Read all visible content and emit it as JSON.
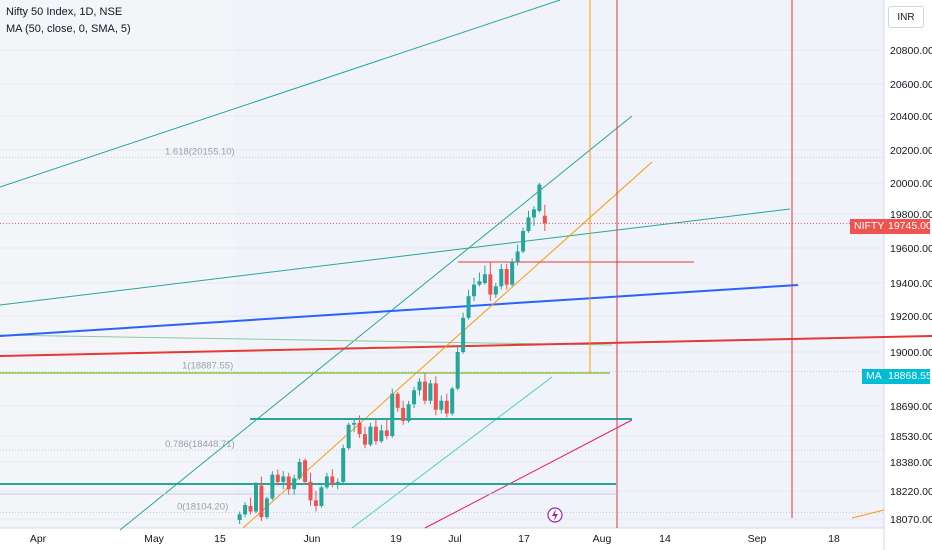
{
  "legend": {
    "symbol_line": "Nifty 50 Index, 1D, NSE",
    "ma_line": "MA (50, close, 0, SMA, 5)"
  },
  "currency": "INR",
  "price_tags": {
    "nifty_label": "NIFTY",
    "nifty_value": "19745.00",
    "ma_label": "MA",
    "ma_value": "18868.55"
  },
  "colors": {
    "up": "#26a69a",
    "down": "#ef5350",
    "ma_tag": "#00bcd4",
    "fib": "#8bc34a",
    "trend_green": "#26a69a",
    "blue": "#2962ff",
    "red": "#e53935",
    "orange": "#ff9800",
    "pink": "#e91e63"
  },
  "chart_data": {
    "type": "candlestick",
    "symbol": "Nifty 50 Index",
    "interval": "1D",
    "exchange": "NSE",
    "x_tick_labels": [
      "Apr",
      "May",
      "15",
      "Jun",
      "19",
      "Jul",
      "17",
      "Aug",
      "14",
      "Sep",
      "18"
    ],
    "y_tick_labels": [
      "20800.00",
      "20600.00",
      "20400.00",
      "20200.00",
      "20000.00",
      "19800.00",
      "19600.00",
      "19400.00",
      "19200.00",
      "19000.00",
      "18690.00",
      "18530.00",
      "18380.00",
      "18220.00",
      "18070.00"
    ],
    "ylim": [
      18040,
      21100
    ],
    "last_close": 19745.0,
    "ma_last": 18868.55,
    "fib_levels": [
      {
        "label": "1.618(20155.10)",
        "value": 20155.1
      },
      {
        "label": "1(18887.55)",
        "value": 18887.55
      },
      {
        "label": "0.786(18448.71)",
        "value": 18448.71
      },
      {
        "label": "0(18104.20)",
        "value": 18104.2
      }
    ],
    "candles": [
      {
        "t": 37,
        "o": 18065,
        "h": 18110,
        "l": 18045,
        "c": 18095
      },
      {
        "t": 38,
        "o": 18095,
        "h": 18160,
        "l": 18080,
        "c": 18145
      },
      {
        "t": 39,
        "o": 18140,
        "h": 18185,
        "l": 18095,
        "c": 18110
      },
      {
        "t": 40,
        "o": 18110,
        "h": 18270,
        "l": 18100,
        "c": 18255
      },
      {
        "t": 41,
        "o": 18250,
        "h": 18300,
        "l": 18060,
        "c": 18080
      },
      {
        "t": 42,
        "o": 18080,
        "h": 18190,
        "l": 18070,
        "c": 18180
      },
      {
        "t": 43,
        "o": 18180,
        "h": 18330,
        "l": 18170,
        "c": 18310
      },
      {
        "t": 44,
        "o": 18310,
        "h": 18340,
        "l": 18250,
        "c": 18270
      },
      {
        "t": 45,
        "o": 18270,
        "h": 18330,
        "l": 18230,
        "c": 18300
      },
      {
        "t": 46,
        "o": 18300,
        "h": 18320,
        "l": 18200,
        "c": 18230
      },
      {
        "t": 47,
        "o": 18230,
        "h": 18310,
        "l": 18200,
        "c": 18290
      },
      {
        "t": 48,
        "o": 18290,
        "h": 18400,
        "l": 18280,
        "c": 18380
      },
      {
        "t": 49,
        "o": 18390,
        "h": 18400,
        "l": 18260,
        "c": 18270
      },
      {
        "t": 50,
        "o": 18270,
        "h": 18320,
        "l": 18140,
        "c": 18170
      },
      {
        "t": 51,
        "o": 18170,
        "h": 18220,
        "l": 18110,
        "c": 18140
      },
      {
        "t": 52,
        "o": 18140,
        "h": 18250,
        "l": 18130,
        "c": 18240
      },
      {
        "t": 53,
        "o": 18240,
        "h": 18320,
        "l": 18230,
        "c": 18300
      },
      {
        "t": 54,
        "o": 18300,
        "h": 18340,
        "l": 18240,
        "c": 18260
      },
      {
        "t": 55,
        "o": 18260,
        "h": 18290,
        "l": 18230,
        "c": 18270
      },
      {
        "t": 56,
        "o": 18270,
        "h": 18480,
        "l": 18260,
        "c": 18460
      },
      {
        "t": 57,
        "o": 18460,
        "h": 18600,
        "l": 18450,
        "c": 18590
      },
      {
        "t": 58,
        "o": 18590,
        "h": 18620,
        "l": 18550,
        "c": 18600
      },
      {
        "t": 59,
        "o": 18600,
        "h": 18640,
        "l": 18520,
        "c": 18540
      },
      {
        "t": 60,
        "o": 18540,
        "h": 18580,
        "l": 18460,
        "c": 18480
      },
      {
        "t": 61,
        "o": 18480,
        "h": 18600,
        "l": 18470,
        "c": 18580
      },
      {
        "t": 62,
        "o": 18580,
        "h": 18620,
        "l": 18480,
        "c": 18500
      },
      {
        "t": 63,
        "o": 18500,
        "h": 18590,
        "l": 18490,
        "c": 18560
      },
      {
        "t": 64,
        "o": 18560,
        "h": 18620,
        "l": 18510,
        "c": 18530
      },
      {
        "t": 65,
        "o": 18530,
        "h": 18790,
        "l": 18520,
        "c": 18760
      },
      {
        "t": 66,
        "o": 18760,
        "h": 18770,
        "l": 18660,
        "c": 18680
      },
      {
        "t": 67,
        "o": 18680,
        "h": 18720,
        "l": 18590,
        "c": 18610
      },
      {
        "t": 68,
        "o": 18610,
        "h": 18720,
        "l": 18600,
        "c": 18700
      },
      {
        "t": 69,
        "o": 18700,
        "h": 18800,
        "l": 18680,
        "c": 18780
      },
      {
        "t": 70,
        "o": 18780,
        "h": 18850,
        "l": 18750,
        "c": 18830
      },
      {
        "t": 71,
        "o": 18830,
        "h": 18880,
        "l": 18700,
        "c": 18720
      },
      {
        "t": 72,
        "o": 18720,
        "h": 18840,
        "l": 18700,
        "c": 18820
      },
      {
        "t": 73,
        "o": 18820,
        "h": 18860,
        "l": 18640,
        "c": 18670
      },
      {
        "t": 74,
        "o": 18670,
        "h": 18750,
        "l": 18650,
        "c": 18720
      },
      {
        "t": 75,
        "o": 18720,
        "h": 18760,
        "l": 18630,
        "c": 18650
      },
      {
        "t": 76,
        "o": 18650,
        "h": 18800,
        "l": 18640,
        "c": 18790
      },
      {
        "t": 77,
        "o": 18790,
        "h": 19030,
        "l": 18780,
        "c": 19000
      },
      {
        "t": 78,
        "o": 19000,
        "h": 19220,
        "l": 18990,
        "c": 19190
      },
      {
        "t": 79,
        "o": 19190,
        "h": 19360,
        "l": 19180,
        "c": 19320
      },
      {
        "t": 80,
        "o": 19320,
        "h": 19430,
        "l": 19290,
        "c": 19390
      },
      {
        "t": 81,
        "o": 19390,
        "h": 19460,
        "l": 19380,
        "c": 19410
      },
      {
        "t": 82,
        "o": 19400,
        "h": 19500,
        "l": 19390,
        "c": 19450
      },
      {
        "t": 83,
        "o": 19450,
        "h": 19520,
        "l": 19290,
        "c": 19330
      },
      {
        "t": 84,
        "o": 19330,
        "h": 19400,
        "l": 19310,
        "c": 19380
      },
      {
        "t": 85,
        "o": 19380,
        "h": 19510,
        "l": 19360,
        "c": 19480
      },
      {
        "t": 86,
        "o": 19480,
        "h": 19510,
        "l": 19360,
        "c": 19390
      },
      {
        "t": 87,
        "o": 19390,
        "h": 19540,
        "l": 19380,
        "c": 19520
      },
      {
        "t": 88,
        "o": 19520,
        "h": 19620,
        "l": 19500,
        "c": 19580
      },
      {
        "t": 89,
        "o": 19580,
        "h": 19720,
        "l": 19570,
        "c": 19700
      },
      {
        "t": 90,
        "o": 19700,
        "h": 19820,
        "l": 19690,
        "c": 19780
      },
      {
        "t": 91,
        "o": 19780,
        "h": 19850,
        "l": 19730,
        "c": 19830
      },
      {
        "t": 92,
        "o": 19820,
        "h": 20000,
        "l": 19810,
        "c": 19990
      },
      {
        "t": 93,
        "o": 19790,
        "h": 19860,
        "l": 19700,
        "c": 19745
      }
    ]
  }
}
